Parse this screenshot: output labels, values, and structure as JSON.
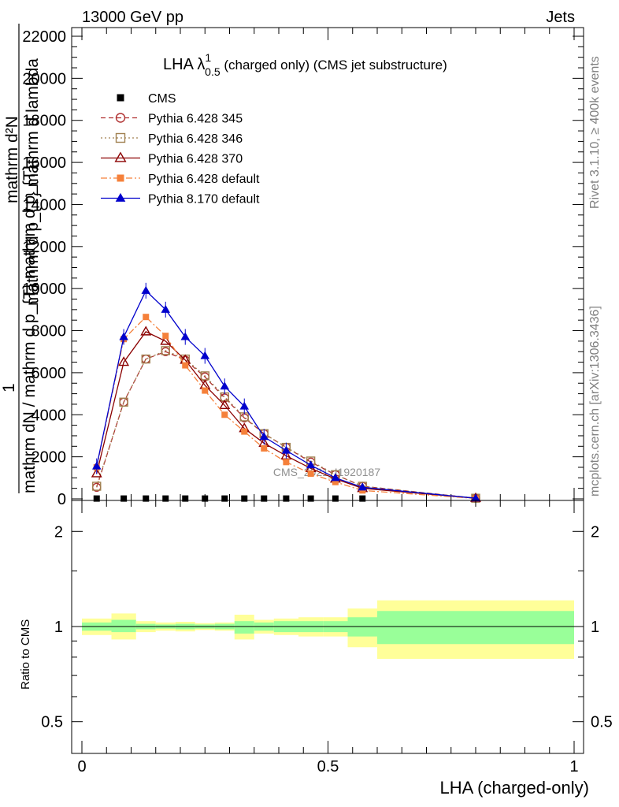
{
  "header": {
    "left": "13000 GeV pp",
    "right": "Jets"
  },
  "side_labels": {
    "rivet": "Rivet 3.1.10, ≥ 400k events",
    "mcplots": "mcplots.cern.ch [arXiv:1306.3436]"
  },
  "watermark": "CMS_2021_I1920187",
  "chart_data": [
    {
      "type": "line",
      "title_main": "LHA λ",
      "title_sup": "1",
      "title_sub": "0.5",
      "title_rest": " (charged only) (CMS jet substructure)",
      "xlabel": "LHA (charged-only)",
      "ylabel": {
        "line1": "mathrm d²N",
        "line2": "mathrm d p_{T} mathrm d lambda",
        "frac_num": "1",
        "frac_den": "mathrm dN / mathrm d p_{T} mathrm d p_{T}"
      },
      "xlim": [
        0,
        1
      ],
      "ylim": [
        0,
        22500
      ],
      "yticks": [
        {
          "v": 0,
          "label": "0"
        },
        {
          "v": 2000,
          "label": "2000"
        },
        {
          "v": 4000,
          "label": "4000"
        },
        {
          "v": 6000,
          "label": "6000"
        },
        {
          "v": 8000,
          "label": "8000"
        },
        {
          "v": 10000,
          "label": "10000"
        },
        {
          "v": 12000,
          "label": "12000"
        },
        {
          "v": 14000,
          "label": "14000"
        },
        {
          "v": 16000,
          "label": "16000"
        },
        {
          "v": 18000,
          "label": "18000"
        },
        {
          "v": 20000,
          "label": "20000"
        },
        {
          "v": 22000,
          "label": "22000"
        }
      ],
      "series": [
        {
          "name": "CMS",
          "color": "#000000",
          "marker": "square-filled",
          "line": "none",
          "x": [
            0.03,
            0.085,
            0.13,
            0.17,
            0.21,
            0.25,
            0.29,
            0.33,
            0.37,
            0.415,
            0.465,
            0.515,
            0.57,
            0.8
          ],
          "y": [
            15,
            15,
            15,
            15,
            15,
            15,
            15,
            15,
            15,
            15,
            15,
            15,
            15,
            0
          ]
        },
        {
          "name": "Pythia 6.428 345",
          "color": "#b03030",
          "marker": "circle-open",
          "line": "dashed",
          "x": [
            0.03,
            0.085,
            0.13,
            0.17,
            0.21,
            0.25,
            0.29,
            0.33,
            0.37,
            0.415,
            0.465,
            0.515,
            0.57,
            0.8
          ],
          "y": [
            550,
            4600,
            6650,
            7000,
            6600,
            5800,
            4800,
            3850,
            3100,
            2450,
            1750,
            1150,
            600,
            30
          ]
        },
        {
          "name": "Pythia 6.428 346",
          "color": "#a08050",
          "marker": "square-open",
          "line": "dotted",
          "x": [
            0.03,
            0.085,
            0.13,
            0.17,
            0.21,
            0.25,
            0.29,
            0.33,
            0.37,
            0.415,
            0.465,
            0.515,
            0.57,
            0.8
          ],
          "y": [
            600,
            4600,
            6650,
            7050,
            6650,
            5850,
            4850,
            3900,
            3100,
            2450,
            1800,
            1150,
            600,
            30
          ]
        },
        {
          "name": "Pythia 6.428 370",
          "color": "#8b0000",
          "marker": "triangle-open",
          "line": "solid",
          "x": [
            0.03,
            0.085,
            0.13,
            0.17,
            0.21,
            0.25,
            0.29,
            0.33,
            0.37,
            0.415,
            0.465,
            0.515,
            0.57,
            0.8
          ],
          "y": [
            1200,
            6500,
            7950,
            7500,
            6600,
            5400,
            4450,
            3350,
            2650,
            2050,
            1450,
            950,
            500,
            30
          ]
        },
        {
          "name": "Pythia 6.428 default",
          "color": "#f5803a",
          "marker": "square-filled",
          "line": "dashdot",
          "x": [
            0.03,
            0.085,
            0.13,
            0.17,
            0.21,
            0.25,
            0.29,
            0.33,
            0.37,
            0.415,
            0.465,
            0.515,
            0.57,
            0.8
          ],
          "y": [
            1500,
            7600,
            8650,
            7750,
            6350,
            5150,
            4000,
            3200,
            2400,
            1750,
            1200,
            800,
            400,
            20
          ]
        },
        {
          "name": "Pythia 8.170 default",
          "color": "#0000cc",
          "marker": "triangle-filled",
          "line": "solid",
          "x": [
            0.03,
            0.085,
            0.13,
            0.17,
            0.21,
            0.25,
            0.29,
            0.33,
            0.37,
            0.415,
            0.465,
            0.515,
            0.57,
            0.8
          ],
          "y": [
            1550,
            7700,
            9900,
            9000,
            7700,
            6800,
            5350,
            4400,
            2950,
            2300,
            1600,
            1000,
            550,
            30
          ]
        }
      ]
    },
    {
      "type": "area",
      "ylabel": "Ratio to CMS",
      "xlim": [
        0,
        1
      ],
      "ylim": [
        0.4,
        2.25
      ],
      "log_scale_y": true,
      "yticks": [
        {
          "v": 0.5,
          "label": "0.5"
        },
        {
          "v": 1,
          "label": "1"
        },
        {
          "v": 2,
          "label": "2"
        }
      ],
      "xticks": [
        {
          "v": 0,
          "label": "0"
        },
        {
          "v": 0.5,
          "label": "0.5"
        },
        {
          "v": 1,
          "label": "1"
        }
      ],
      "reference_line": 1,
      "bands": {
        "inner_color": "#99ff99",
        "outer_color": "#ffff99",
        "bins": [
          {
            "x0": 0.0,
            "x1": 0.06,
            "inner": [
              0.97,
              1.03
            ],
            "outer": [
              0.94,
              1.06
            ]
          },
          {
            "x0": 0.06,
            "x1": 0.11,
            "inner": [
              0.96,
              1.05
            ],
            "outer": [
              0.91,
              1.1
            ]
          },
          {
            "x0": 0.11,
            "x1": 0.15,
            "inner": [
              0.98,
              1.02
            ],
            "outer": [
              0.96,
              1.04
            ]
          },
          {
            "x0": 0.15,
            "x1": 0.19,
            "inner": [
              0.985,
              1.015
            ],
            "outer": [
              0.97,
              1.03
            ]
          },
          {
            "x0": 0.19,
            "x1": 0.23,
            "inner": [
              0.98,
              1.02
            ],
            "outer": [
              0.965,
              1.035
            ]
          },
          {
            "x0": 0.23,
            "x1": 0.27,
            "inner": [
              0.985,
              1.015
            ],
            "outer": [
              0.975,
              1.025
            ]
          },
          {
            "x0": 0.27,
            "x1": 0.31,
            "inner": [
              0.98,
              1.02
            ],
            "outer": [
              0.97,
              1.03
            ]
          },
          {
            "x0": 0.31,
            "x1": 0.35,
            "inner": [
              0.95,
              1.04
            ],
            "outer": [
              0.91,
              1.09
            ]
          },
          {
            "x0": 0.35,
            "x1": 0.39,
            "inner": [
              0.97,
              1.03
            ],
            "outer": [
              0.95,
              1.05
            ]
          },
          {
            "x0": 0.39,
            "x1": 0.44,
            "inner": [
              0.96,
              1.04
            ],
            "outer": [
              0.94,
              1.06
            ]
          },
          {
            "x0": 0.44,
            "x1": 0.49,
            "inner": [
              0.96,
              1.04
            ],
            "outer": [
              0.93,
              1.07
            ]
          },
          {
            "x0": 0.49,
            "x1": 0.54,
            "inner": [
              0.96,
              1.04
            ],
            "outer": [
              0.93,
              1.07
            ]
          },
          {
            "x0": 0.54,
            "x1": 0.6,
            "inner": [
              0.93,
              1.07
            ],
            "outer": [
              0.86,
              1.14
            ]
          },
          {
            "x0": 0.6,
            "x1": 1.0,
            "inner": [
              0.88,
              1.12
            ],
            "outer": [
              0.79,
              1.21
            ]
          }
        ]
      }
    }
  ]
}
